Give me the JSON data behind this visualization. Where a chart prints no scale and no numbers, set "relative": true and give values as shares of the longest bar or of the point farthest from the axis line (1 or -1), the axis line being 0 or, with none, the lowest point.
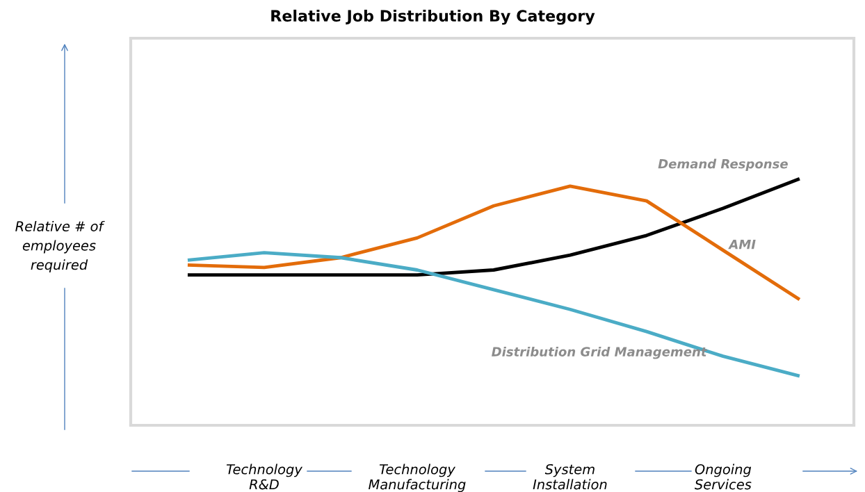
{
  "chart_data": {
    "type": "line",
    "title": "Relative Job Distribution By Category",
    "ylabel": "Relative # of employees required",
    "relative": true,
    "legend": false,
    "grid": false,
    "marker": "none",
    "line_style": "solid",
    "categories": [
      null,
      "Technology\nR&D",
      null,
      "Technology\nManufacturing",
      null,
      "System\nInstallation",
      null,
      "Ongoing\nServices",
      null
    ],
    "series": [
      {
        "name": "Demand Response",
        "color": "#000000",
        "values": [
          0.61,
          0.61,
          0.61,
          0.61,
          0.63,
          0.69,
          0.77,
          0.88,
          1.0
        ]
      },
      {
        "name": "AMI",
        "color": "#e36c0a",
        "values": [
          0.65,
          0.64,
          0.68,
          0.76,
          0.89,
          0.97,
          0.91,
          0.71,
          0.51
        ]
      },
      {
        "name": "Distribution Grid Management",
        "color": "#4bacc6",
        "values": [
          0.67,
          0.7,
          0.68,
          0.63,
          0.55,
          0.47,
          0.38,
          0.28,
          0.2
        ]
      }
    ]
  }
}
